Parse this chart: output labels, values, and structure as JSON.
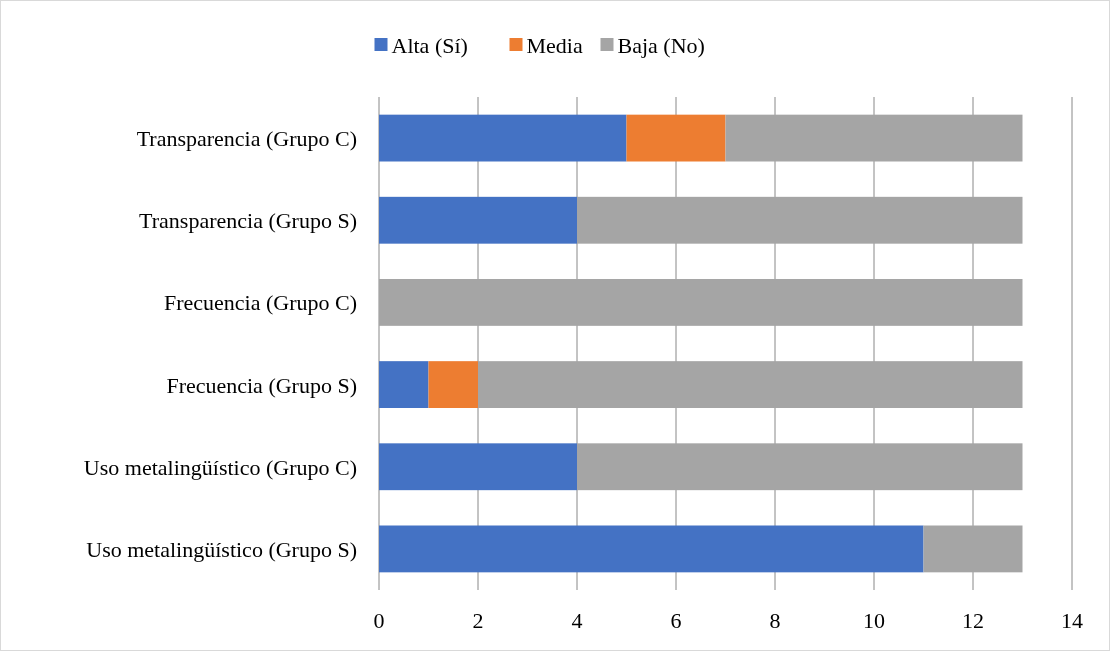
{
  "chart_data": {
    "type": "bar",
    "orientation": "horizontal",
    "stacked": true,
    "categories": [
      "Transparencia (Grupo C)",
      "Transparencia (Grupo S)",
      "Frecuencia (Grupo C)",
      "Frecuencia (Grupo S)",
      "Uso metalingüístico (Grupo C)",
      "Uso metalingüístico (Grupo S)"
    ],
    "series": [
      {
        "name": "Alta (Sí)",
        "color": "#4472c4",
        "values": [
          5,
          4,
          0,
          1,
          4,
          11
        ]
      },
      {
        "name": "Media",
        "color": "#ed7d31",
        "values": [
          2,
          0,
          0,
          1,
          0,
          0
        ]
      },
      {
        "name": "Baja (No)",
        "color": "#a5a5a5",
        "values": [
          6,
          9,
          13,
          11,
          9,
          2
        ]
      }
    ],
    "xlim": [
      0,
      14
    ],
    "xticks": [
      0,
      2,
      4,
      6,
      8,
      10,
      12,
      14
    ],
    "grid": "x",
    "legend": "top"
  }
}
